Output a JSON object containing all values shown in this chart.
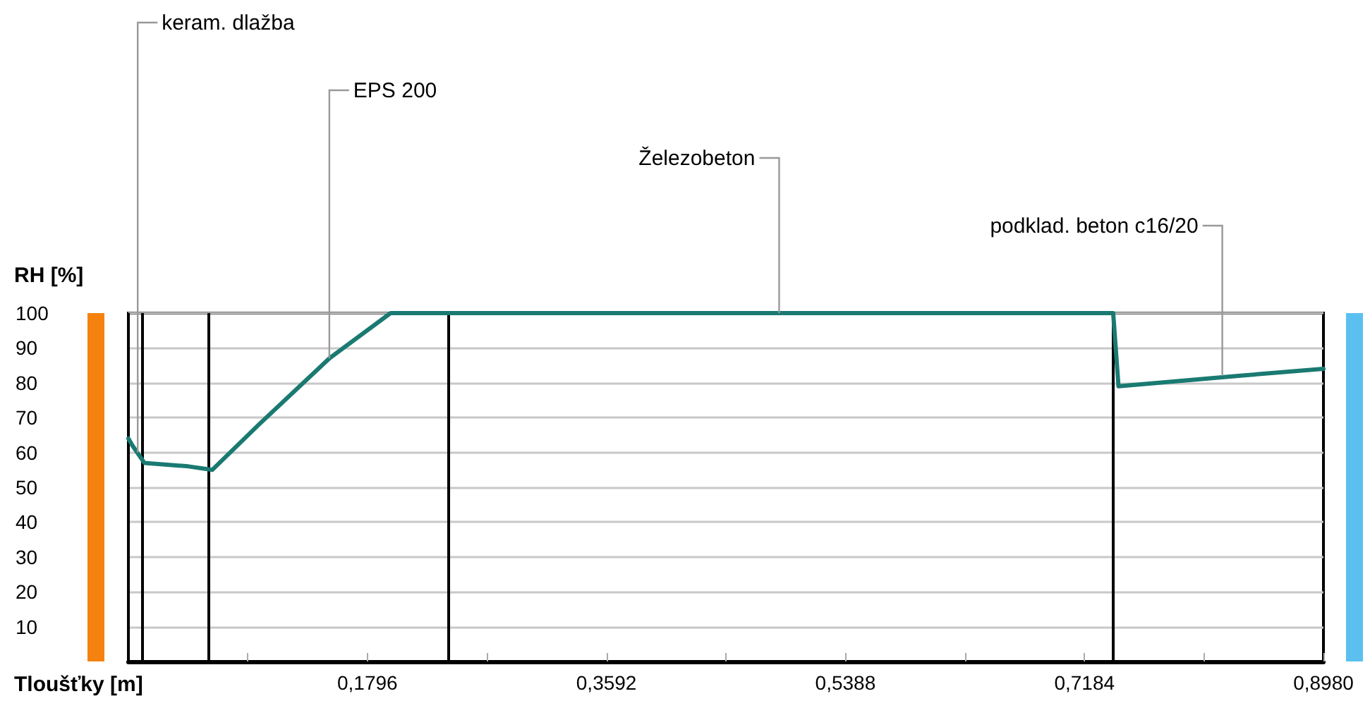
{
  "chart_data": {
    "type": "line",
    "xlabel": "Tloušťky [m]",
    "ylabel": "RH [%]",
    "x": [
      0,
      0.003,
      0.012,
      0.045,
      0.063,
      0.098,
      0.151,
      0.197,
      0.74,
      0.744,
      0.834,
      0.898
    ],
    "series": [
      {
        "color": "#1a7a72",
        "values": [
          64,
          62,
          57,
          56,
          55,
          68,
          87,
          100,
          100,
          79,
          82,
          84
        ]
      }
    ],
    "xlim": [
      0,
      0.898
    ],
    "xticks": [
      {
        "value": 0.0898,
        "label": null
      },
      {
        "value": 0.1796,
        "label": "0,1796"
      },
      {
        "value": 0.2694,
        "label": null
      },
      {
        "value": 0.3592,
        "label": "0,3592"
      },
      {
        "value": 0.449,
        "label": null
      },
      {
        "value": 0.5388,
        "label": "0,5388"
      },
      {
        "value": 0.6286,
        "label": null
      },
      {
        "value": 0.7184,
        "label": "0,7184"
      },
      {
        "value": 0.8082,
        "label": null
      },
      {
        "value": 0.898,
        "label": "0,8980"
      }
    ],
    "ylim": [
      0,
      100
    ],
    "yticks": [
      10,
      20,
      30,
      40,
      50,
      60,
      70,
      80,
      90,
      100
    ],
    "grid": "y",
    "marker": "none",
    "line_style": "solid",
    "ref_lines": [
      {
        "axis": "x",
        "value": 0.002,
        "label": null,
        "color": "#000000"
      },
      {
        "axis": "x",
        "value": 0.012,
        "label": null,
        "color": "#000000"
      },
      {
        "axis": "x",
        "value": 0.06,
        "label": null,
        "color": "#000000"
      },
      {
        "axis": "x",
        "value": 0.241,
        "label": null,
        "color": "#000000"
      },
      {
        "axis": "x",
        "value": 0.742,
        "label": null,
        "color": "#000000"
      }
    ],
    "annotations": [
      {
        "text": "keram. dlažba",
        "x": 0.007,
        "y": 60
      },
      {
        "text": "EPS 200",
        "x": 0.151,
        "y": 87
      },
      {
        "text": "Železobeton",
        "x": 0.489,
        "y": 100
      },
      {
        "text": "podklad. beton c16/20",
        "x": 0.822,
        "y": 82
      }
    ]
  }
}
